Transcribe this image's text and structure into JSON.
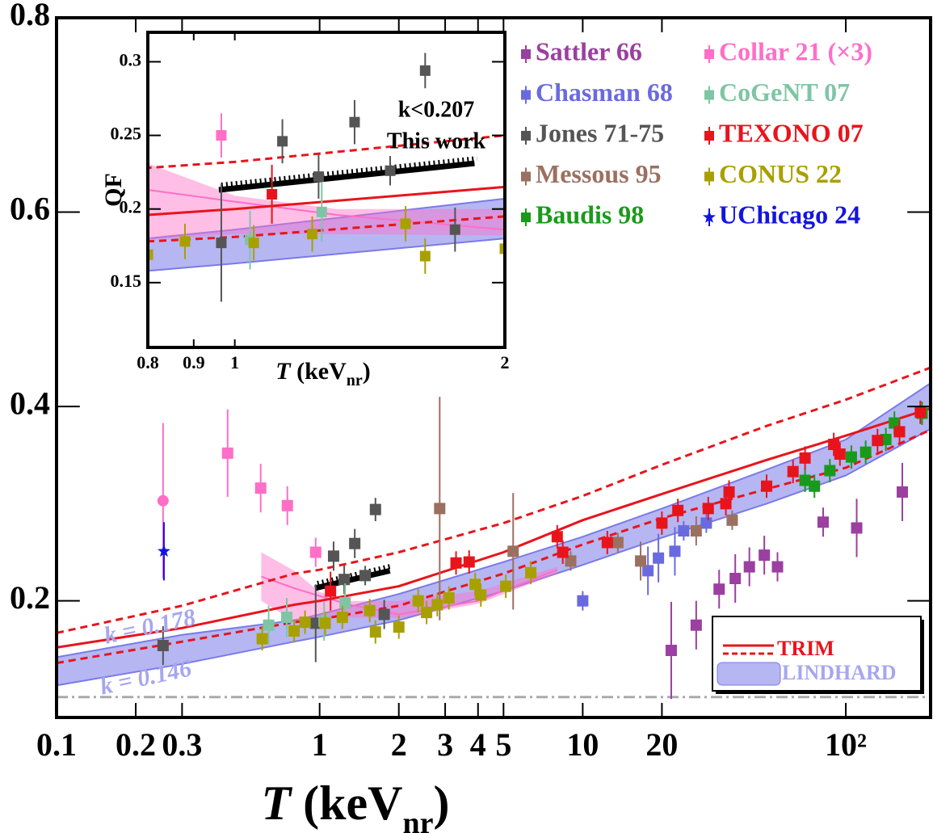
{
  "chart_data": {
    "type": "scatter",
    "x_label": {
      "symbol": "T",
      "unit": "(keV",
      "subscript": "nr",
      "end": ")"
    },
    "xlim": [
      0.1,
      210
    ],
    "ylim": [
      0.08,
      0.8
    ],
    "log_x": true,
    "xticks": [
      0.1,
      0.2,
      0.3,
      1,
      2,
      3,
      4,
      5,
      10,
      20,
      {
        "value": 100,
        "label": "10²"
      }
    ],
    "yticks": [
      0.2,
      0.4,
      0.6,
      0.8
    ],
    "series": [
      {
        "name": "Sattler 66",
        "color": "#9b3fa0",
        "marker": "square",
        "x": [
          164,
          110,
          82,
          55,
          49,
          43,
          38,
          33,
          27,
          21.7
        ],
        "values": [
          0.312,
          0.275,
          0.281,
          0.235,
          0.247,
          0.235,
          0.223,
          0.212,
          0.175,
          0.149
        ],
        "yerr": [
          0.03,
          0.03,
          0.015,
          0.015,
          0.02,
          0.02,
          0.025,
          0.02,
          0.025,
          0.05
        ]
      },
      {
        "name": "Chasman 68",
        "color": "#6a6ae0",
        "marker": "square",
        "x": [
          10,
          17.7,
          19.4,
          22.4,
          24.2,
          29.5
        ],
        "values": [
          0.2,
          0.231,
          0.244,
          0.251,
          0.272,
          0.28
        ],
        "yerr": [
          0.01,
          0.025,
          0.025,
          0.025,
          0.01,
          0.01
        ]
      },
      {
        "name": "Jones 71-75",
        "color": "#555555",
        "marker": "square",
        "x": [
          0.254,
          0.966,
          1.13,
          1.24,
          1.36,
          1.49,
          1.63,
          1.76
        ],
        "values": [
          0.154,
          0.177,
          0.246,
          0.222,
          0.259,
          0.226,
          0.294,
          0.186
        ],
        "yerr": [
          0.02,
          0.04,
          0.015,
          0.015,
          0.015,
          0.01,
          0.012,
          0.015
        ]
      },
      {
        "name": "Messous 95",
        "color": "#9b7060",
        "marker": "square",
        "x": [
          2.86,
          5.44,
          9.0,
          13.6,
          16.6,
          27,
          37
        ],
        "values": [
          0.295,
          0.251,
          0.241,
          0.26,
          0.241,
          0.272,
          0.283
        ],
        "yerr": [
          0.115,
          0.06,
          0.01,
          0.01,
          0.02,
          0.015,
          0.01
        ]
      },
      {
        "name": "Baudis 98",
        "color": "#1a9a1a",
        "marker": "square",
        "x": [
          70,
          76,
          87,
          105,
          119,
          142,
          153,
          195
        ],
        "values": [
          0.324,
          0.318,
          0.334,
          0.348,
          0.353,
          0.366,
          0.383,
          0.393
        ],
        "yerr": [
          0.012,
          0.012,
          0.012,
          0.012,
          0.012,
          0.012,
          0.012,
          0.012
        ]
      },
      {
        "name": "Collar 21 (×3)",
        "color": "#ff6ec7",
        "marker": "square",
        "point_markers": [
          "circle",
          "square",
          "square",
          "square",
          "square"
        ],
        "x": [
          0.254,
          0.447,
          0.597,
          0.754,
          0.966
        ],
        "values": [
          0.303,
          0.352,
          0.316,
          0.298,
          0.25
        ],
        "yerr": [
          0.08,
          0.045,
          0.025,
          0.02,
          0.015
        ]
      },
      {
        "name": "CoGeNT 07",
        "color": "#7fc5a5",
        "marker": "square",
        "x": [
          0.64,
          0.75,
          1.04,
          1.25
        ],
        "values": [
          0.175,
          0.183,
          0.179,
          0.198
        ],
        "yerr": [
          0.02,
          0.02,
          0.02,
          0.02
        ]
      },
      {
        "name": "TEXONO 07",
        "color": "#e8141c",
        "marker": "square",
        "x": [
          1.1,
          3.3,
          3.7,
          8.0,
          8.4,
          12.4,
          20,
          23,
          30,
          35,
          36,
          50,
          63,
          70,
          90,
          95,
          132,
          160,
          192
        ],
        "values": [
          0.21,
          0.239,
          0.24,
          0.266,
          0.25,
          0.26,
          0.28,
          0.293,
          0.295,
          0.3,
          0.312,
          0.318,
          0.333,
          0.347,
          0.361,
          0.351,
          0.365,
          0.374,
          0.394
        ],
        "yerr": [
          0.02,
          0.012,
          0.012,
          0.012,
          0.012,
          0.012,
          0.012,
          0.012,
          0.012,
          0.012,
          0.012,
          0.012,
          0.012,
          0.012,
          0.012,
          0.012,
          0.012,
          0.012,
          0.012
        ]
      },
      {
        "name": "CONUS 22",
        "color": "#a8a000",
        "marker": "square",
        "x": [
          0.605,
          0.8,
          0.88,
          1.05,
          1.22,
          1.55,
          1.63,
          2.0,
          2.37,
          2.55,
          2.8,
          3.1,
          3.9,
          4.1,
          5.1,
          6.35
        ],
        "values": [
          0.161,
          0.169,
          0.178,
          0.177,
          0.183,
          0.19,
          0.168,
          0.173,
          0.2,
          0.188,
          0.196,
          0.203,
          0.217,
          0.206,
          0.215,
          0.229
        ],
        "yerr": [
          0.012,
          0.012,
          0.012,
          0.012,
          0.012,
          0.012,
          0.012,
          0.012,
          0.012,
          0.012,
          0.012,
          0.012,
          0.012,
          0.012,
          0.012,
          0.012
        ]
      },
      {
        "name": "UChicago 24",
        "color": "#1414e0",
        "marker": "star",
        "x": [
          0.256
        ],
        "values": [
          0.251
        ],
        "yerr": [
          0.03
        ]
      }
    ],
    "model_x": [
      0.1,
      0.3,
      0.8,
      1,
      2,
      5,
      10,
      20,
      50,
      100,
      210
    ],
    "trim": {
      "name": "TRIM",
      "color": "#e8141c",
      "center": [
        0.152,
        0.172,
        0.196,
        0.2,
        0.215,
        0.25,
        0.283,
        0.31,
        0.345,
        0.37,
        0.398
      ],
      "upper": [
        0.167,
        0.195,
        0.228,
        0.232,
        0.25,
        0.28,
        0.308,
        0.34,
        0.38,
        0.407,
        0.44
      ],
      "lower": [
        0.136,
        0.158,
        0.178,
        0.181,
        0.195,
        0.228,
        0.258,
        0.285,
        0.315,
        0.337,
        0.376
      ]
    },
    "lindhard": {
      "name": "LINDHARD",
      "color": "#7a7ae8",
      "upper": [
        0.142,
        0.165,
        0.18,
        0.186,
        0.207,
        0.24,
        0.266,
        0.295,
        0.335,
        0.366,
        0.424
      ],
      "lower": [
        0.113,
        0.135,
        0.158,
        0.163,
        0.18,
        0.21,
        0.237,
        0.265,
        0.3,
        0.329,
        0.377
      ]
    },
    "collar_fit": {
      "color": "#ff6ec7",
      "x": [
        0.6,
        0.8,
        1,
        1.3,
        2,
        4,
        8
      ],
      "upper": [
        0.25,
        0.231,
        0.209,
        0.2,
        0.2,
        0.21,
        0.235
      ],
      "center": [
        0.225,
        0.213,
        0.205,
        0.196,
        0.186,
        0.2,
        0.232
      ],
      "lower": [
        0.2,
        0.179,
        0.183,
        0.183,
        0.182,
        0.197,
        0.228
      ]
    },
    "this_work": {
      "label": "k<0.207",
      "label2": "This work",
      "x": [
        0.96,
        1.85
      ],
      "values": [
        0.213,
        0.231
      ]
    },
    "reference_line": 0.101,
    "annotations": [
      "k = 0.178",
      "k = 0.146"
    ],
    "inset": {
      "y_label": "QF",
      "x_label": {
        "symbol": "T",
        "unit": "(keV",
        "subscript": "nr",
        "end": ")"
      },
      "xlim": [
        0.8,
        2
      ],
      "ylim": [
        0.106,
        0.32
      ],
      "xticks": [
        0.8,
        0.9,
        1,
        2
      ],
      "yticks": [
        0.15,
        0.2,
        0.25,
        0.3
      ]
    }
  }
}
